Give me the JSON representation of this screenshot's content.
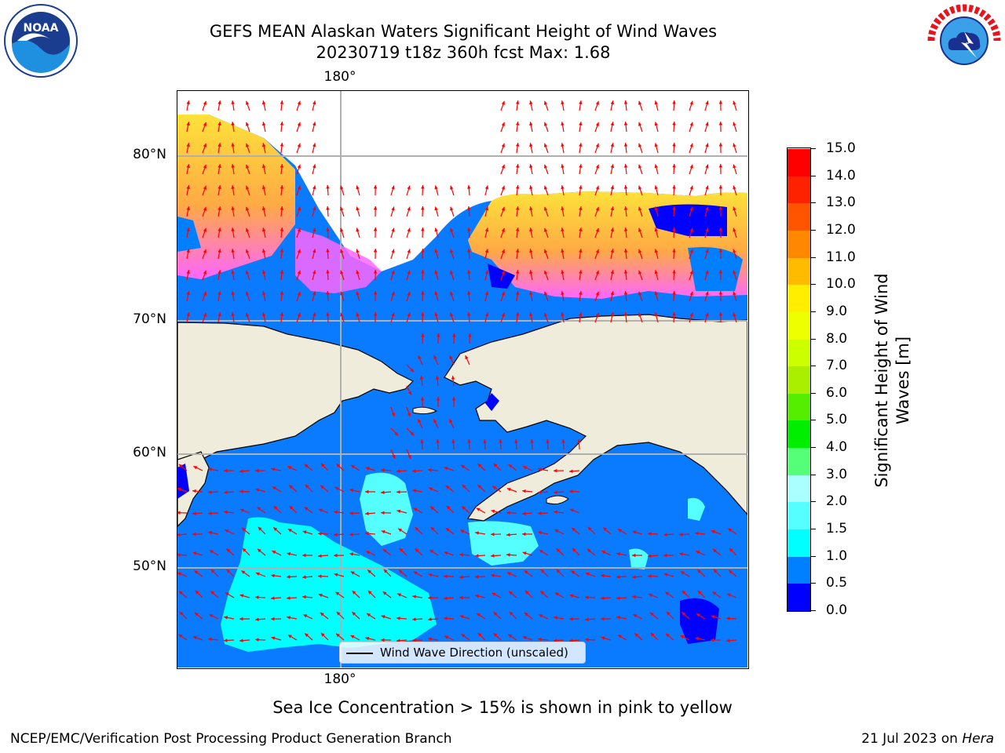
{
  "title_line1": "GEFS MEAN Alaskan Waters Significant Height of Wind Waves",
  "title_line2": "20230719 t18z 360h fcst   Max: 1.68",
  "logos": {
    "left": {
      "icon": "noaa-logo-icon",
      "text": "NOAA"
    },
    "right": {
      "icon": "nws-logo-icon",
      "text": "NATIONAL WEATHER SERVICE"
    }
  },
  "map": {
    "lon_top_label": "180°",
    "lon_bottom_label": "180°",
    "lat_labels": [
      "80°N",
      "70°N",
      "60°N",
      "50°N"
    ],
    "legend_label": "Wind Wave Direction (unscaled)",
    "arrow_color": "#ff0000",
    "land_color": "#efecdb",
    "sea_ice_colors": [
      "#ff66ff",
      "#ffaa44",
      "#ffe23a"
    ]
  },
  "colorbar": {
    "label": "Significant Height of Wind Waves [m]",
    "label_line1": "Significant Height of Wind",
    "label_line2": "Waves [m]",
    "ticks": [
      "0.0",
      "0.5",
      "1.0",
      "1.5",
      "2.0",
      "3.0",
      "4.0",
      "5.0",
      "6.0",
      "7.0",
      "8.0",
      "9.0",
      "10.0",
      "11.0",
      "12.0",
      "13.0",
      "14.0",
      "15.0"
    ],
    "colors": [
      "#0000ff",
      "#0080ff",
      "#00ffff",
      "#55ffff",
      "#aaffff",
      "#55ff77",
      "#00ee00",
      "#55ee00",
      "#aaee00",
      "#ccff00",
      "#eeff00",
      "#ffee00",
      "#ffbb00",
      "#ff8800",
      "#ff5500",
      "#ff2200",
      "#ff0000"
    ]
  },
  "caption": "Sea Ice Concentration > 15% is shown in pink to yellow",
  "footer_left": "NCEP/EMC/Verification Post Processing Product Generation Branch",
  "footer_right_date": "21 Jul 2023 on ",
  "footer_right_host": "Hera"
}
